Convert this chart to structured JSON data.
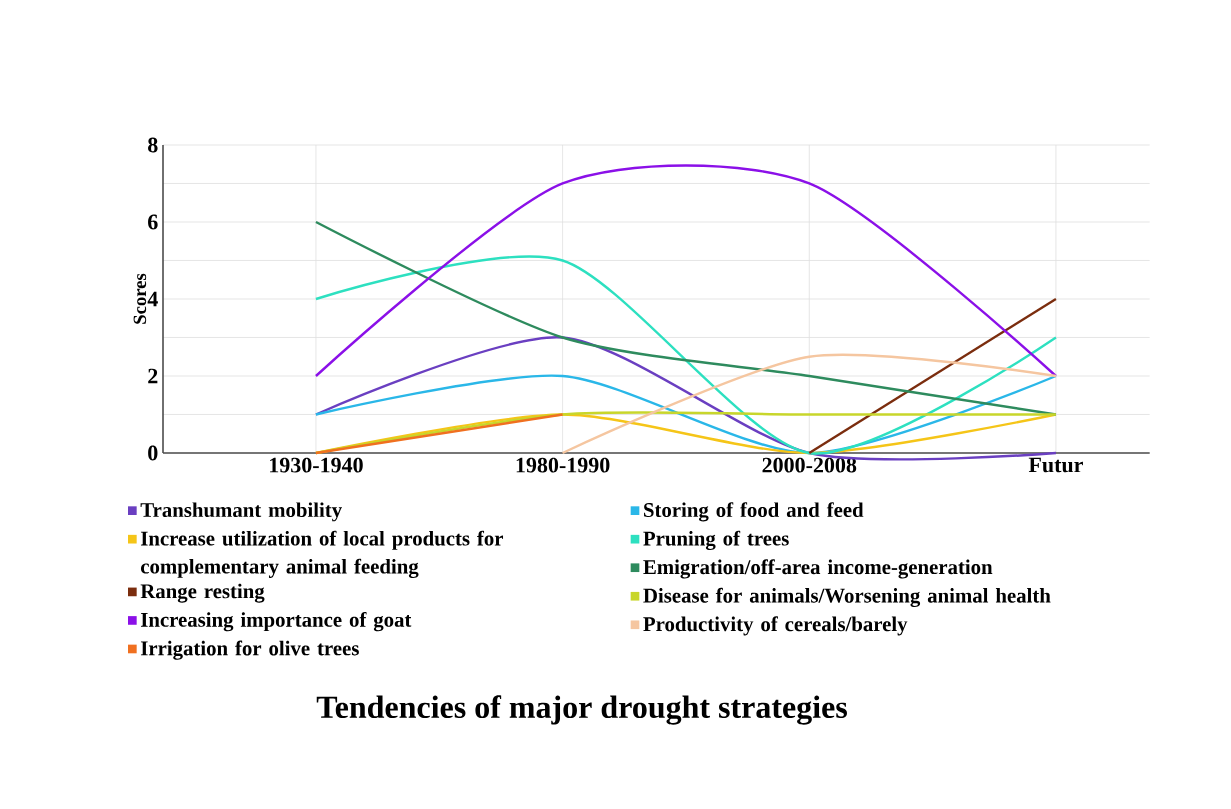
{
  "chart_data": {
    "type": "line",
    "title": "Tendencies of major drought strategies",
    "ylabel": "Scores",
    "categories": [
      "1930-1940",
      "1980-1990",
      "2000-2008",
      "Futur"
    ],
    "series": [
      {
        "name": "Transhumant mobility",
        "color": "#6a3fc1",
        "values": [
          1,
          3,
          0,
          0
        ]
      },
      {
        "name": "Storing of food and feed",
        "color": "#2ab7e8",
        "values": [
          1,
          2,
          0,
          2
        ]
      },
      {
        "name": "Increase utilization of local products for complementary animal feeding",
        "color": "#f5c518",
        "values": [
          0,
          1,
          0,
          1
        ]
      },
      {
        "name": "Pruning of trees",
        "color": "#2de0c0",
        "values": [
          4,
          5,
          0,
          3
        ]
      },
      {
        "name": "Range resting",
        "color": "#7b2d0e",
        "values": [
          null,
          null,
          0,
          4
        ]
      },
      {
        "name": "Emigration/off-area income-generation",
        "color": "#2e8b5e",
        "values": [
          6,
          3,
          2,
          1
        ]
      },
      {
        "name": "Increasing importance of goat",
        "color": "#8b10e8",
        "values": [
          2,
          7,
          7,
          2
        ]
      },
      {
        "name": "Disease for animals/Worsening animal health",
        "color": "#c8d62b",
        "values": [
          0,
          1,
          1,
          1
        ]
      },
      {
        "name": "Irrigation for olive trees",
        "color": "#f07020",
        "values": [
          0,
          1,
          null,
          null
        ]
      },
      {
        "name": "Productivity of cereals/barely",
        "color": "#f5c6a0",
        "values": [
          null,
          0,
          2.5,
          2
        ]
      }
    ],
    "ylim": [
      0,
      8
    ],
    "yticks": [
      0,
      2,
      4,
      6,
      8
    ],
    "grid": true,
    "legend": "bottom",
    "marker": "none",
    "line_style": "solid"
  }
}
